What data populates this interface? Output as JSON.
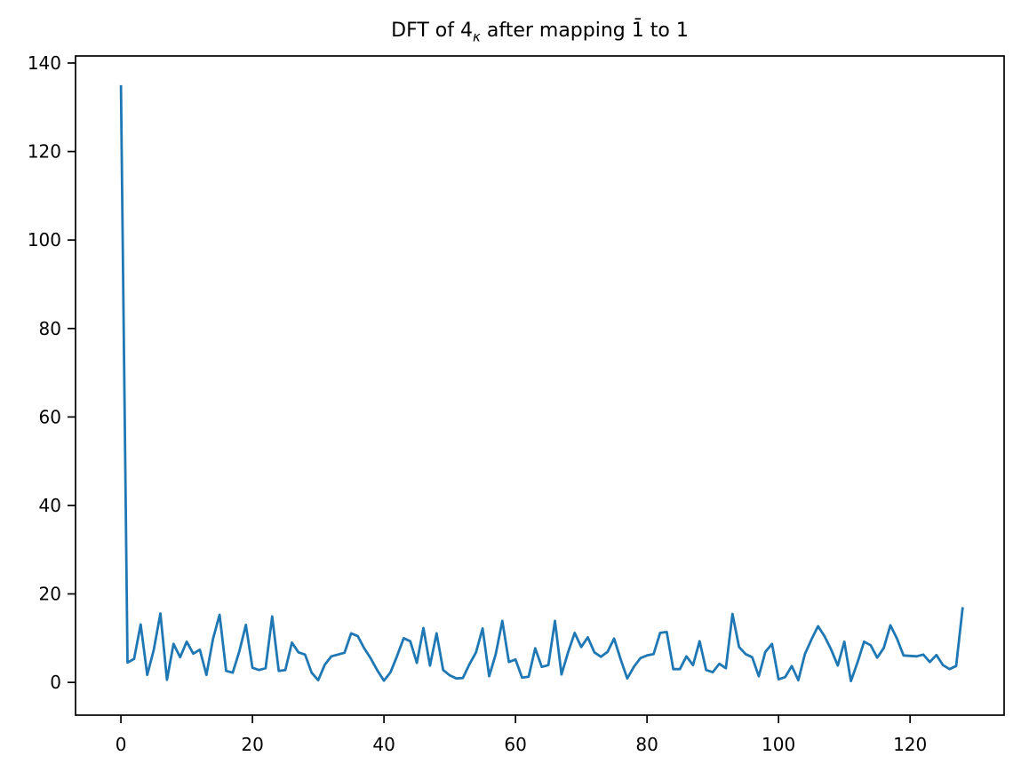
{
  "figure": {
    "title_prefix": "DFT of 4",
    "title_sub": "κ",
    "title_suffix": " after mapping 1̄ to 1"
  },
  "chart_data": {
    "type": "line",
    "title": "DFT of 4_κ after mapping 1̄ to 1",
    "xlabel": "",
    "ylabel": "",
    "x_start": 0,
    "x_step": 1,
    "n_points": 129,
    "values": [
      135,
      4.5,
      5.3,
      13.1,
      1.7,
      7.4,
      15.6,
      0.6,
      8.7,
      5.7,
      9.2,
      6.5,
      7.4,
      1.7,
      9.8,
      15.3,
      2.6,
      2.2,
      7.0,
      13.0,
      3.3,
      2.8,
      3.2,
      14.9,
      2.6,
      2.8,
      9.0,
      6.8,
      6.3,
      2.2,
      0.5,
      4.0,
      5.9,
      6.3,
      6.7,
      11.1,
      10.5,
      7.7,
      5.4,
      2.7,
      0.4,
      2.3,
      6.0,
      10.0,
      9.3,
      4.4,
      12.3,
      3.8,
      11.1,
      2.8,
      1.6,
      0.9,
      1.0,
      4.1,
      6.8,
      12.2,
      1.4,
      6.4,
      13.9,
      4.6,
      5.2,
      1.1,
      1.3,
      7.7,
      3.5,
      3.9,
      13.9,
      1.8,
      6.8,
      11.2,
      8.0,
      10.2,
      6.8,
      5.8,
      6.9,
      9.9,
      5.2,
      0.9,
      3.5,
      5.5,
      6.1,
      6.4,
      11.2,
      11.4,
      3.0,
      3.0,
      5.9,
      3.9,
      9.3,
      2.8,
      2.3,
      4.2,
      3.2,
      15.5,
      8.0,
      6.4,
      5.7,
      1.4,
      6.9,
      8.7,
      0.7,
      1.2,
      3.7,
      0.5,
      6.4,
      9.7,
      12.7,
      10.4,
      7.4,
      3.8,
      9.2,
      0.3,
      4.5,
      9.2,
      8.4,
      5.6,
      7.8,
      12.9,
      9.9,
      6.1,
      6.0,
      5.9,
      6.3,
      4.6,
      6.2,
      3.9,
      3.0,
      3.7,
      17.0
    ],
    "xticks": [
      0,
      20,
      40,
      60,
      80,
      100,
      120
    ],
    "yticks": [
      0,
      20,
      40,
      60,
      80,
      100,
      120,
      140
    ],
    "xlim": [
      -6.9,
      134.3
    ],
    "ylim": [
      -7.4,
      141.6
    ],
    "line_color": "#1f77b4",
    "axis_color": "#000000",
    "grid": false,
    "legend_position": "none"
  }
}
